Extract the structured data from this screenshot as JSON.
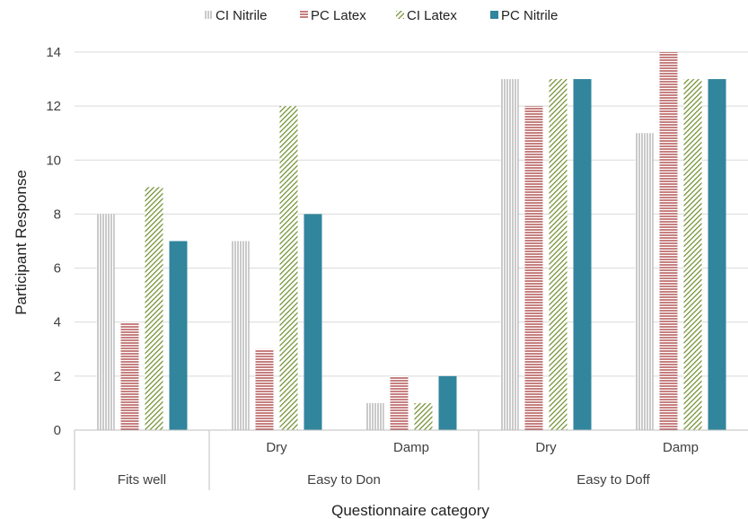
{
  "chart_data": {
    "type": "bar",
    "title": "",
    "xlabel": "Questionnaire category",
    "ylabel": "Participant Response",
    "ylim": [
      0,
      14
    ],
    "yticks": [
      0,
      2,
      4,
      6,
      8,
      10,
      12,
      14
    ],
    "grid": true,
    "legend_position": "top",
    "groups": [
      {
        "label": "Fits well",
        "subcategories": [
          ""
        ]
      },
      {
        "label": "Easy to Don",
        "subcategories": [
          "Dry",
          "Damp"
        ]
      },
      {
        "label": "Easy to Doff",
        "subcategories": [
          "Dry",
          "Damp"
        ]
      }
    ],
    "categories": [
      "Fits well",
      "Easy to Don - Dry",
      "Easy to Don - Damp",
      "Easy to Doff - Dry",
      "Easy to Doff - Damp"
    ],
    "series": [
      {
        "name": "CI Nitrile",
        "pattern": "vertical-lines",
        "color": "#a6a6a6",
        "values": [
          8,
          7,
          1,
          13,
          11
        ]
      },
      {
        "name": "PC Latex",
        "pattern": "horizontal-lines",
        "color": "#a83c3c",
        "values": [
          4,
          3,
          2,
          12,
          14
        ]
      },
      {
        "name": "CI Latex",
        "pattern": "diagonal-lines",
        "color": "#6b8c2a",
        "values": [
          9,
          12,
          1,
          13,
          13
        ]
      },
      {
        "name": "PC Nitrile",
        "pattern": "solid",
        "color": "#31859c",
        "values": [
          7,
          8,
          2,
          13,
          13
        ]
      }
    ]
  }
}
